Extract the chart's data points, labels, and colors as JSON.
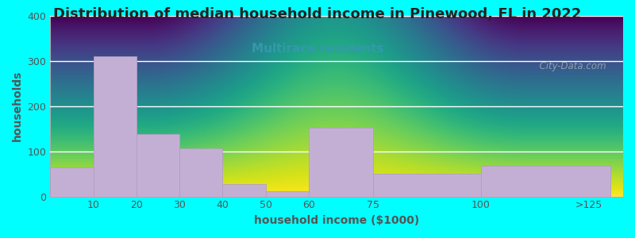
{
  "title": "Distribution of median household income in Pinewood, FL in 2022",
  "subtitle": "Multirace residents",
  "xlabel": "household income ($1000)",
  "ylabel": "households",
  "background_color": "#00FFFF",
  "bar_color": "#c4afd4",
  "bar_edge_color": "#b09ec0",
  "values": [
    65,
    310,
    138,
    107,
    27,
    12,
    152,
    50,
    68
  ],
  "ylim": [
    0,
    400
  ],
  "yticks": [
    0,
    100,
    200,
    300,
    400
  ],
  "title_fontsize": 13,
  "subtitle_fontsize": 11,
  "subtitle_color": "#3399aa",
  "axis_label_fontsize": 10,
  "tick_fontsize": 9,
  "watermark": "  City-Data.com",
  "plot_bg_color_top": "#e8f4e8",
  "plot_bg_color_bottom": "#ffffff",
  "title_color": "#222222"
}
